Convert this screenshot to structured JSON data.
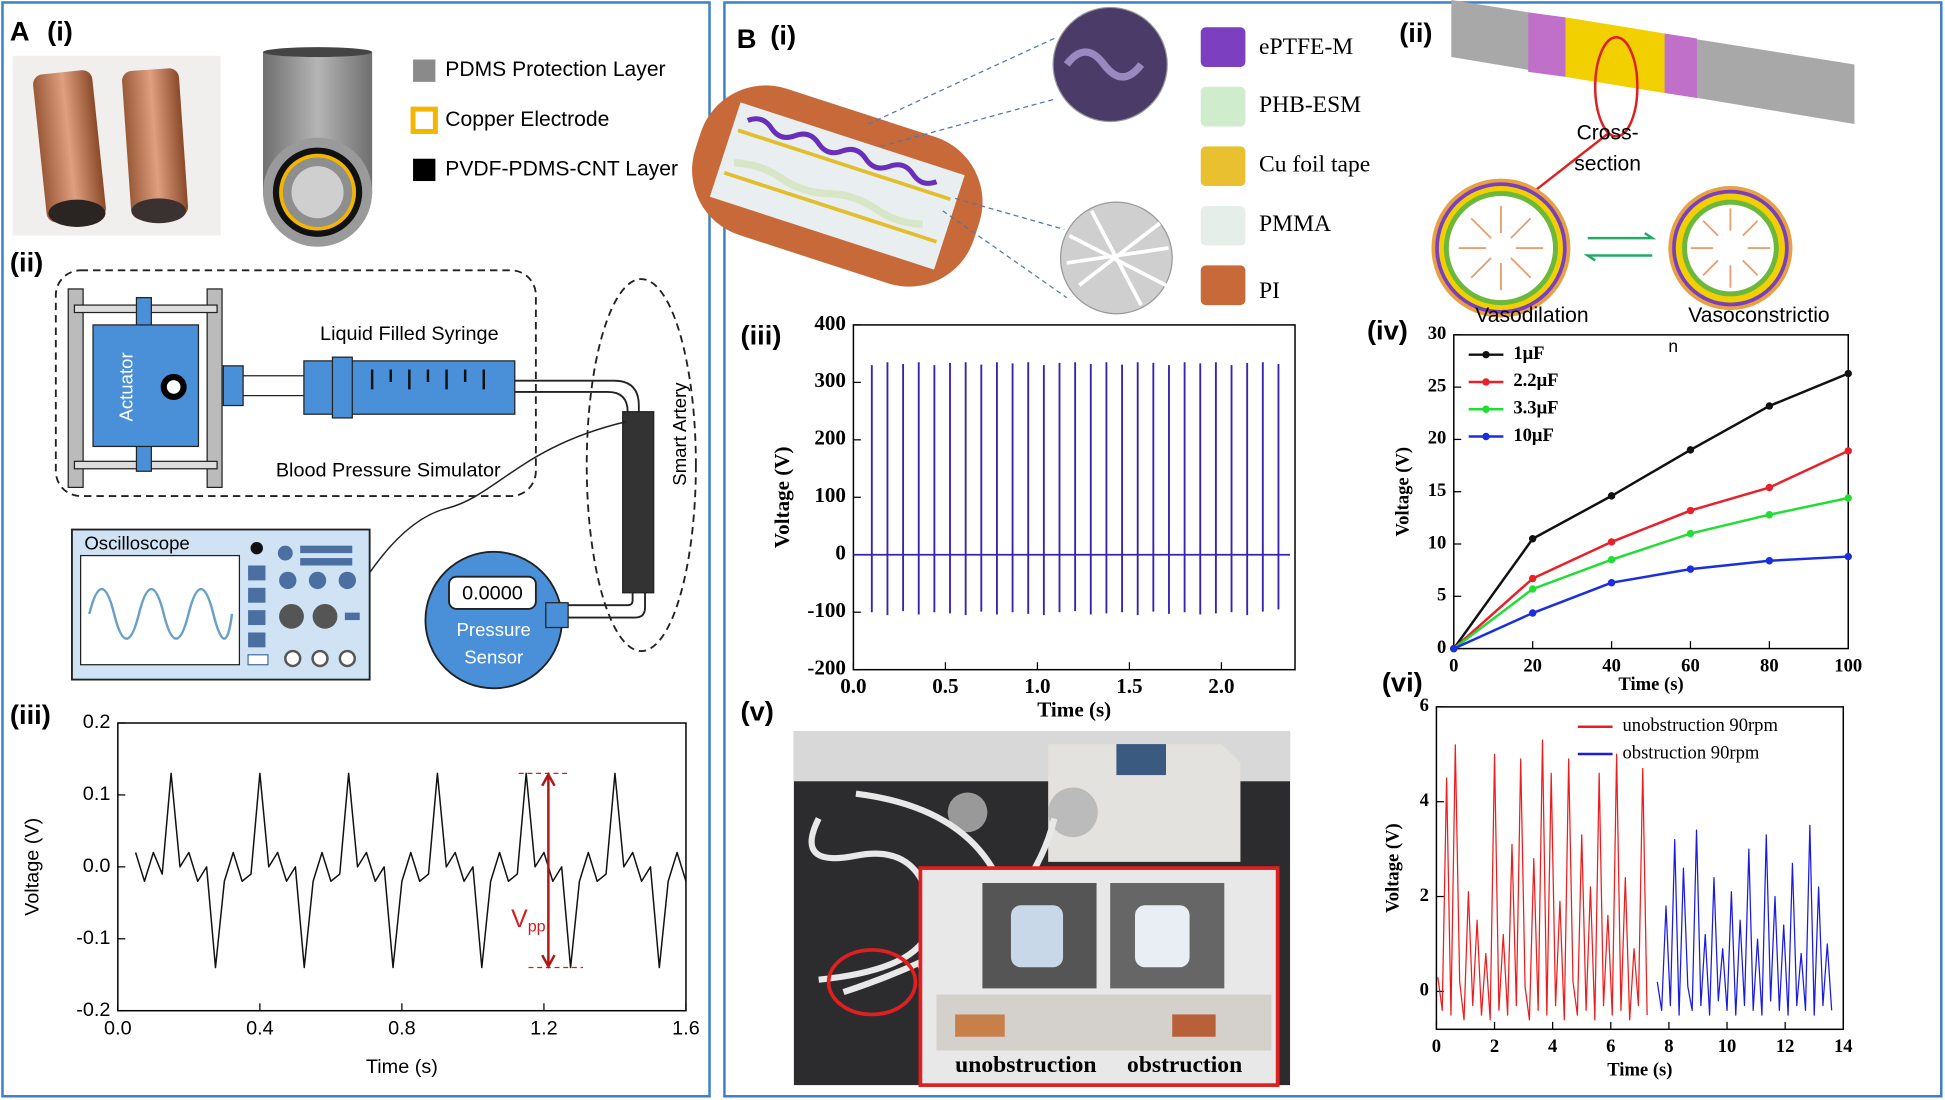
{
  "panels": {
    "A": {
      "label": "A",
      "i": "(i)",
      "ii": "(ii)",
      "iii": "(iii)",
      "legend": [
        "PDMS Protection Layer",
        "Copper Electrode",
        "PVDF-PDMS-CNT Layer"
      ],
      "setup": {
        "syringe": "Liquid Filled Syringe",
        "actuator": "Actuator",
        "simulator": "Blood Pressure Simulator",
        "oscilloscope": "Oscilloscope",
        "reading": "0.0000",
        "sensor": [
          "Pressure",
          "Sensor"
        ],
        "artery": "Smart Artery"
      }
    },
    "B": {
      "label": "B",
      "i": "(i)",
      "ii": "(ii)",
      "iii": "(iii)",
      "iv": "(iv)",
      "v": "(v)",
      "vi": "(vi)",
      "legend": [
        "ePTFE-M",
        "PHB-ESM",
        "Cu foil tape",
        "PMMA",
        "PI"
      ],
      "cross_section": [
        "Cross-",
        "section"
      ],
      "states": [
        "Vasodilation",
        "Vasoconstrictio",
        "n"
      ],
      "photo": [
        "unobstruction",
        "obstruction"
      ]
    }
  },
  "chart_data": [
    {
      "type": "line",
      "xlabel": "Time (s)",
      "ylabel": "Voltage (V)",
      "color": "#111111",
      "xlim": [
        0,
        1.6
      ],
      "ylim": [
        -0.2,
        0.2
      ],
      "xticks": [
        {
          "value": 0,
          "label": "0.0"
        },
        0.4,
        0.8,
        1.2,
        1.6
      ],
      "yticks": [
        -0.2,
        -0.1,
        {
          "value": 0,
          "label": "0.0"
        },
        0.1,
        0.2
      ],
      "annotation": {
        "main": "V",
        "sub": "pp"
      },
      "x": [
        0.05,
        0.075,
        0.1,
        0.125,
        0.15,
        0.175,
        0.2,
        0.225,
        0.25,
        0.275,
        0.3,
        0.325,
        0.35,
        0.375,
        0.4,
        0.425,
        0.45,
        0.475,
        0.5,
        0.525,
        0.55,
        0.575,
        0.6,
        0.625,
        0.65,
        0.675,
        0.7,
        0.725,
        0.75,
        0.775,
        0.8,
        0.825,
        0.85,
        0.875,
        0.9,
        0.925,
        0.95,
        0.975,
        1.0,
        1.025,
        1.05,
        1.075,
        1.1,
        1.125,
        1.15,
        1.175,
        1.2,
        1.225,
        1.25,
        1.275,
        1.3,
        1.325,
        1.35,
        1.375,
        1.4,
        1.425,
        1.45,
        1.475,
        1.5,
        1.525,
        1.55,
        1.575,
        1.6
      ],
      "values": [
        0.02,
        -0.02,
        0.02,
        -0.01,
        0.13,
        0.0,
        0.02,
        -0.02,
        0.0,
        -0.14,
        -0.02,
        0.02,
        -0.02,
        -0.01,
        0.13,
        0.0,
        0.02,
        -0.02,
        0.0,
        -0.14,
        -0.02,
        0.02,
        -0.02,
        -0.01,
        0.13,
        0.0,
        0.02,
        -0.02,
        0.0,
        -0.14,
        -0.02,
        0.02,
        -0.02,
        -0.01,
        0.13,
        0.0,
        0.02,
        -0.02,
        0.0,
        -0.14,
        -0.02,
        0.02,
        -0.02,
        -0.01,
        0.13,
        0.0,
        0.02,
        -0.02,
        0.0,
        -0.14,
        -0.02,
        0.02,
        -0.02,
        -0.01,
        0.13,
        0.0,
        0.02,
        -0.02,
        0.0,
        -0.14,
        -0.02,
        0.02,
        -0.02
      ]
    },
    {
      "type": "spike",
      "xlabel": "Time (s)",
      "ylabel": "Voltage (V)",
      "color": "#3a22b0",
      "xlim": [
        0,
        2.4
      ],
      "ylim": [
        -200,
        400
      ],
      "xticks": [
        {
          "value": 0,
          "label": "0.0"
        },
        0.5,
        {
          "value": 1,
          "label": "1.0"
        },
        1.5,
        {
          "value": 2,
          "label": "2.0"
        }
      ],
      "yticks": [
        -200,
        -100,
        0,
        100,
        200,
        300,
        400
      ],
      "x": [
        0.1,
        0.185,
        0.27,
        0.355,
        0.44,
        0.525,
        0.61,
        0.695,
        0.78,
        0.865,
        0.95,
        1.035,
        1.12,
        1.205,
        1.29,
        1.375,
        1.46,
        1.545,
        1.63,
        1.715,
        1.8,
        1.885,
        1.97,
        2.055,
        2.14,
        2.225,
        2.31
      ],
      "values": [
        330,
        335,
        332,
        335,
        330,
        334,
        335,
        331,
        335,
        333,
        335,
        330,
        334,
        335,
        332,
        335,
        331,
        335,
        334,
        330,
        335,
        333,
        335,
        330,
        334,
        335,
        332
      ],
      "minima": [
        -100,
        -105,
        -98,
        -104,
        -100,
        -102,
        -105,
        -99,
        -104,
        -100,
        -103,
        -105,
        -100,
        -98,
        -104,
        -102,
        -100,
        -105,
        -99,
        -103,
        -100,
        -104,
        -102,
        -100,
        -105,
        -99,
        -95
      ]
    },
    {
      "type": "line",
      "xlabel": "Time (s)",
      "ylabel": "Voltage (V)",
      "markers": true,
      "legend": "upper left",
      "xlim": [
        0,
        100
      ],
      "ylim": [
        0,
        30
      ],
      "xticks": [
        0,
        20,
        40,
        60,
        80,
        100
      ],
      "yticks": [
        0,
        5,
        10,
        15,
        20,
        25,
        30
      ],
      "x": [
        0,
        20,
        40,
        60,
        80,
        100
      ],
      "series": [
        {
          "name": "1μF",
          "color": "#111111",
          "values": [
            0,
            10.5,
            14.6,
            19,
            23.2,
            26.3
          ]
        },
        {
          "name": "2.2μF",
          "color": "#e8202a",
          "values": [
            0,
            6.7,
            10.2,
            13.2,
            15.4,
            18.9
          ]
        },
        {
          "name": "3.3μF",
          "color": "#22dd33",
          "values": [
            0,
            5.7,
            8.5,
            11,
            12.8,
            14.4
          ]
        },
        {
          "name": "10μF",
          "color": "#1a2ee0",
          "values": [
            0,
            3.4,
            6.3,
            7.6,
            8.4,
            8.8
          ]
        }
      ]
    },
    {
      "type": "line",
      "xlabel": "Time (s)",
      "ylabel": "Voltage (V)",
      "legend": "upper center",
      "xlim": [
        0,
        14
      ],
      "ylim": [
        -0.8,
        6
      ],
      "xticks": [
        0,
        2,
        4,
        6,
        8,
        10,
        12,
        14
      ],
      "yticks": [
        0,
        2,
        4,
        6
      ],
      "series": [
        {
          "name": "unobstruction 90rpm",
          "color": "#ee1c1c",
          "x": [
            0.05,
            0.2,
            0.35,
            0.5,
            0.65,
            0.8,
            0.95,
            1.1,
            1.25,
            1.4,
            1.55,
            1.7,
            1.85,
            2.0,
            2.15,
            2.3,
            2.45,
            2.6,
            2.75,
            2.9,
            3.05,
            3.2,
            3.35,
            3.5,
            3.65,
            3.8,
            3.95,
            4.1,
            4.25,
            4.4,
            4.55,
            4.7,
            4.85,
            5.0,
            5.15,
            5.3,
            5.45,
            5.6,
            5.75,
            5.9,
            6.05,
            6.2,
            6.35,
            6.5,
            6.65,
            6.8,
            6.95,
            7.1,
            7.25
          ],
          "values": [
            0.3,
            -0.4,
            4.5,
            -0.5,
            5.2,
            0.2,
            -0.6,
            2.1,
            -0.3,
            1.5,
            -0.5,
            0.8,
            -0.6,
            5.0,
            -0.4,
            1.2,
            -0.5,
            3.1,
            -0.3,
            4.9,
            0.1,
            -0.6,
            2.8,
            -0.4,
            5.3,
            -0.5,
            4.6,
            -0.3,
            1.9,
            -0.6,
            4.9,
            0.2,
            -0.5,
            3.3,
            -0.4,
            2.2,
            -0.6,
            4.6,
            -0.3,
            1.6,
            -0.5,
            5.0,
            -0.4,
            2.4,
            -0.6,
            0.9,
            -0.3,
            4.7,
            -0.5
          ]
        },
        {
          "name": "obstruction 90rpm",
          "color": "#1a1ae0",
          "x": [
            7.6,
            7.75,
            7.9,
            8.05,
            8.2,
            8.35,
            8.5,
            8.65,
            8.8,
            8.95,
            9.1,
            9.25,
            9.4,
            9.55,
            9.7,
            9.85,
            10.0,
            10.15,
            10.3,
            10.45,
            10.6,
            10.75,
            10.9,
            11.05,
            11.2,
            11.35,
            11.5,
            11.65,
            11.8,
            11.95,
            12.1,
            12.25,
            12.4,
            12.55,
            12.7,
            12.85,
            13.0,
            13.15,
            13.3,
            13.45,
            13.6
          ],
          "values": [
            0.2,
            -0.4,
            1.8,
            -0.3,
            3.2,
            -0.5,
            2.6,
            0.1,
            -0.4,
            3.4,
            -0.3,
            1.2,
            -0.5,
            2.4,
            -0.2,
            0.9,
            -0.4,
            2.1,
            -0.5,
            1.5,
            -0.3,
            3.0,
            -0.4,
            1.1,
            -0.5,
            3.3,
            -0.2,
            2.0,
            -0.4,
            1.4,
            -0.5,
            2.7,
            -0.3,
            0.8,
            -0.4,
            3.5,
            -0.5,
            2.2,
            -0.3,
            1.0,
            -0.4
          ]
        }
      ]
    }
  ]
}
